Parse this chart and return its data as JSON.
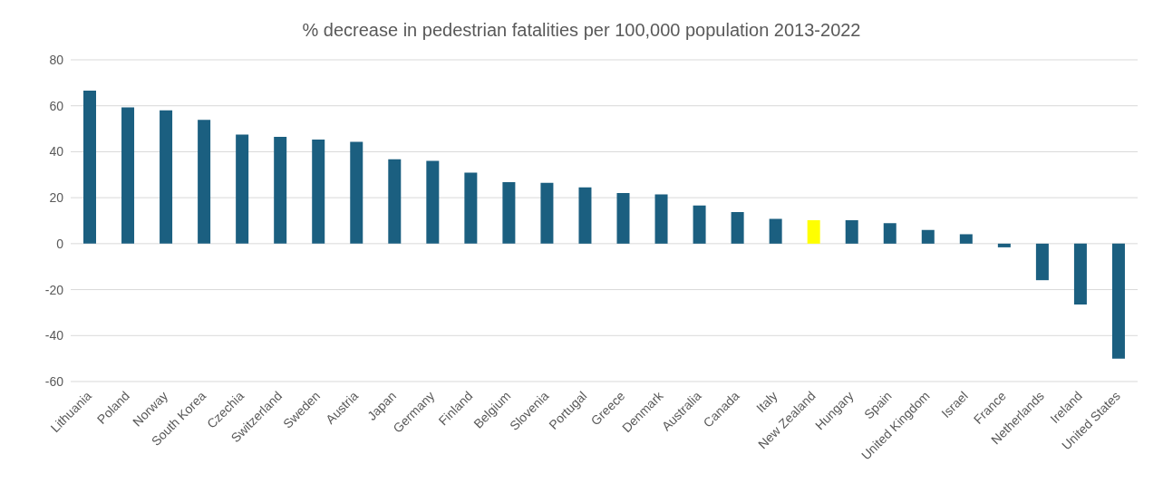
{
  "chart_data": {
    "type": "bar",
    "title": "% decrease in pedestrian fatalities per 100,000 population 2013-2022",
    "categories": [
      "Lithuania",
      "Poland",
      "Norway",
      "South Korea",
      "Czechia",
      "Switzerland",
      "Sweden",
      "Austria",
      "Japan",
      "Germany",
      "Finland",
      "Belgium",
      "Slovenia",
      "Portugal",
      "Greece",
      "Denmark",
      "Australia",
      "Canada",
      "Italy",
      "New Zealand",
      "Hungary",
      "Spain",
      "United Kingdom",
      "Israel",
      "France",
      "Netherlands",
      "Ireland",
      "United States"
    ],
    "values": [
      66.6,
      59.3,
      58,
      53.9,
      47.5,
      46.5,
      45.3,
      44.3,
      36.7,
      36,
      30.9,
      26.8,
      26.5,
      24.5,
      22,
      21.4,
      16.6,
      13.7,
      10.8,
      10.2,
      10.2,
      8.9,
      6,
      4.1,
      -1.6,
      -15.9,
      -26.5,
      -50
    ],
    "colors": [
      "#1b5f80",
      "#1b5f80",
      "#1b5f80",
      "#1b5f80",
      "#1b5f80",
      "#1b5f80",
      "#1b5f80",
      "#1b5f80",
      "#1b5f80",
      "#1b5f80",
      "#1b5f80",
      "#1b5f80",
      "#1b5f80",
      "#1b5f80",
      "#1b5f80",
      "#1b5f80",
      "#1b5f80",
      "#1b5f80",
      "#1b5f80",
      "#ffff00",
      "#1b5f80",
      "#1b5f80",
      "#1b5f80",
      "#1b5f80",
      "#1b5f80",
      "#1b5f80",
      "#1b5f80",
      "#1b5f80"
    ],
    "ylim": [
      -60,
      80
    ],
    "yticks": [
      -60,
      -40,
      -20,
      0,
      20,
      40,
      60,
      80
    ],
    "grid": "y"
  }
}
